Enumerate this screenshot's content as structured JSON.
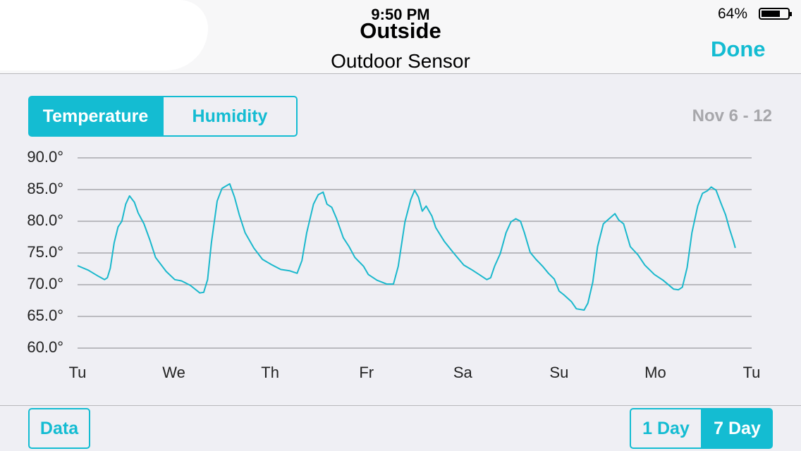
{
  "status_bar": {
    "time": "9:50 PM",
    "battery": "64%"
  },
  "header": {
    "title": "Outside",
    "subtitle": "Outdoor Sensor",
    "done": "Done"
  },
  "tabs": [
    "Temperature",
    "Humidity"
  ],
  "date_range": "Nov 6 - 12",
  "chart_data": {
    "type": "line",
    "color": "#1ab8cc",
    "grid": true,
    "x": [
      0,
      0.11,
      0.22,
      0.28,
      0.31,
      0.34,
      0.38,
      0.42,
      0.46,
      0.5,
      0.54,
      0.59,
      0.63,
      0.69,
      0.75,
      0.81,
      0.92,
      1.01,
      1.08,
      1.17,
      1.27,
      1.31,
      1.35,
      1.39,
      1.45,
      1.5,
      1.58,
      1.63,
      1.68,
      1.74,
      1.83,
      1.92,
      2.01,
      2.11,
      2.2,
      2.28,
      2.33,
      2.38,
      2.45,
      2.5,
      2.55,
      2.59,
      2.64,
      2.69,
      2.76,
      2.82,
      2.88,
      2.97,
      3.02,
      3.11,
      3.21,
      3.28,
      3.33,
      3.4,
      3.46,
      3.5,
      3.54,
      3.58,
      3.62,
      3.68,
      3.72,
      3.81,
      3.9,
      4.01,
      4.1,
      4.17,
      4.25,
      4.29,
      4.33,
      4.39,
      4.45,
      4.5,
      4.55,
      4.6,
      4.64,
      4.7,
      4.76,
      4.83,
      4.89,
      4.95,
      5.0,
      5.05,
      5.13,
      5.18,
      5.26,
      5.3,
      5.35,
      5.4,
      5.46,
      5.52,
      5.58,
      5.62,
      5.67,
      5.74,
      5.82,
      5.89,
      5.99,
      6.08,
      6.19,
      6.24,
      6.28,
      6.33,
      6.38,
      6.44,
      6.49,
      6.54,
      6.58,
      6.63,
      6.68,
      6.73,
      6.77,
      6.81,
      6.83
    ],
    "values": [
      73.0,
      72.3,
      71.3,
      70.8,
      71.1,
      72.6,
      76.6,
      79.1,
      80.0,
      82.7,
      84.0,
      83.0,
      81.3,
      79.6,
      77.1,
      74.3,
      72.1,
      70.8,
      70.6,
      69.9,
      68.7,
      68.8,
      70.8,
      76.6,
      83.2,
      85.2,
      85.9,
      83.8,
      81.0,
      78.2,
      75.8,
      74.0,
      73.2,
      72.4,
      72.2,
      71.8,
      73.8,
      78.2,
      82.7,
      84.2,
      84.6,
      82.7,
      82.2,
      80.4,
      77.4,
      76.0,
      74.3,
      72.9,
      71.6,
      70.7,
      70.1,
      70.1,
      72.9,
      79.9,
      83.4,
      84.9,
      83.8,
      81.6,
      82.4,
      80.8,
      79.0,
      76.8,
      75.1,
      73.1,
      72.3,
      71.6,
      70.8,
      71.1,
      72.9,
      74.9,
      78.2,
      79.9,
      80.4,
      80.0,
      78.2,
      75.1,
      74.0,
      72.9,
      71.8,
      70.9,
      69.0,
      68.4,
      67.3,
      66.2,
      66.0,
      67.1,
      70.4,
      76.0,
      79.6,
      80.4,
      81.2,
      80.2,
      79.6,
      76.0,
      74.7,
      73.1,
      71.6,
      70.7,
      69.3,
      69.2,
      69.6,
      72.7,
      78.2,
      82.4,
      84.4,
      84.8,
      85.4,
      84.9,
      82.9,
      81.0,
      78.8,
      76.9,
      75.8
    ],
    "xlim": [
      0,
      7
    ],
    "xticks": [
      {
        "value": 0,
        "label": "Tu"
      },
      {
        "value": 1,
        "label": "We"
      },
      {
        "value": 2,
        "label": "Th"
      },
      {
        "value": 3,
        "label": "Fr"
      },
      {
        "value": 4,
        "label": "Sa"
      },
      {
        "value": 5,
        "label": "Su"
      },
      {
        "value": 6,
        "label": "Mo"
      },
      {
        "value": 7,
        "label": "Tu"
      }
    ],
    "ylim": [
      60,
      90
    ],
    "yticks": [
      {
        "value": 90,
        "label": "90.0°"
      },
      {
        "value": 85,
        "label": "85.0°"
      },
      {
        "value": 80,
        "label": "80.0°"
      },
      {
        "value": 75,
        "label": "75.0°"
      },
      {
        "value": 70,
        "label": "70.0°"
      },
      {
        "value": 65,
        "label": "65.0°"
      },
      {
        "value": 60,
        "label": "60.0°"
      }
    ]
  },
  "footer": {
    "data_button": "Data",
    "range_buttons": [
      "1 Day",
      "7 Day"
    ]
  }
}
